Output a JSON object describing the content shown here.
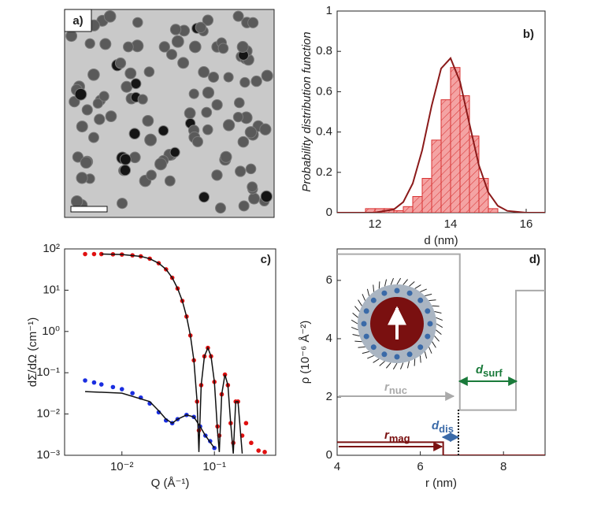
{
  "chart_data": [
    {
      "type": "image",
      "panel_label": "a)"
    },
    {
      "type": "histogram",
      "panel_label": "b)",
      "xlabel": "d (nm)",
      "ylabel": "Probability distribution function",
      "xlim": [
        11,
        16.5
      ],
      "ylim": [
        0,
        1
      ],
      "xticks": [
        12,
        14,
        16
      ],
      "yticks": [
        0,
        0.2,
        0.4,
        0.6,
        0.8,
        1
      ],
      "bins": [
        11.75,
        12,
        12.25,
        12.5,
        12.75,
        13,
        13.25,
        13.5,
        13.75,
        14,
        14.25,
        14.5,
        14.75,
        15,
        15.25
      ],
      "counts": [
        0.02,
        0.02,
        0.02,
        0.01,
        0.03,
        0.08,
        0.17,
        0.36,
        0.56,
        0.72,
        0.58,
        0.38,
        0.17,
        0.02
      ],
      "color": "#f4a3a3",
      "edge_color": "#d83030",
      "fit": {
        "color": "#8b1a1a",
        "x": [
          11,
          11.5,
          12,
          12.5,
          12.75,
          13,
          13.25,
          13.5,
          13.75,
          14,
          14.25,
          14.5,
          14.75,
          15,
          15.25,
          15.5,
          16,
          16.5
        ],
        "y": [
          0,
          0,
          0.0007,
          0.016,
          0.053,
          0.145,
          0.31,
          0.53,
          0.715,
          0.766,
          0.65,
          0.44,
          0.235,
          0.1,
          0.034,
          0.009,
          0,
          0
        ]
      }
    },
    {
      "type": "scatter",
      "panel_label": "c)",
      "xlabel": "Q (Å⁻¹)",
      "ylabel": "dΣ/dΩ (cm⁻¹)",
      "xscale": "log",
      "yscale": "log",
      "xlim": [
        0.0024,
        0.46
      ],
      "ylim": [
        0.001,
        100
      ],
      "xticks": [
        {
          "value": 0.01,
          "label": "10⁻²"
        },
        {
          "value": 0.1,
          "label": "10⁻¹"
        }
      ],
      "yticks": [
        {
          "value": 0.001,
          "label": "10⁻³"
        },
        {
          "value": 0.01,
          "label": "10⁻²"
        },
        {
          "value": 0.1,
          "label": "10⁻¹"
        },
        {
          "value": 1,
          "label": "10⁰"
        },
        {
          "value": 10,
          "label": "10¹"
        },
        {
          "value": 100,
          "label": "10²"
        }
      ],
      "series": [
        {
          "color": "#e01010",
          "x": [
            0.004,
            0.005,
            0.006,
            0.008,
            0.01,
            0.013,
            0.016,
            0.02,
            0.025,
            0.03,
            0.035,
            0.04,
            0.045,
            0.05,
            0.055,
            0.06,
            0.065,
            0.068,
            0.072,
            0.078,
            0.085,
            0.092,
            0.1,
            0.108,
            0.113,
            0.12,
            0.13,
            0.14,
            0.15,
            0.16,
            0.17,
            0.18,
            0.2,
            0.22,
            0.25,
            0.3,
            0.35
          ],
          "values": [
            75,
            75,
            75,
            74,
            73,
            70,
            66,
            58,
            45,
            32,
            20,
            11,
            5.5,
            2.3,
            0.8,
            0.2,
            0.02,
            0.004,
            0.05,
            0.25,
            0.4,
            0.25,
            0.06,
            0.005,
            0.003,
            0.03,
            0.09,
            0.05,
            0.006,
            0.002,
            0.02,
            0.02,
            0.003,
            0.006,
            0.002,
            0.0013,
            0.0012
          ]
        },
        {
          "color": "#1a2ee0",
          "x": [
            0.004,
            0.005,
            0.006,
            0.008,
            0.01,
            0.013,
            0.016,
            0.02,
            0.025,
            0.03,
            0.035,
            0.04,
            0.05,
            0.06,
            0.07,
            0.08,
            0.09,
            0.1
          ],
          "values": [
            0.065,
            0.058,
            0.052,
            0.045,
            0.04,
            0.032,
            0.025,
            0.018,
            0.011,
            0.007,
            0.006,
            0.0075,
            0.0095,
            0.0085,
            0.005,
            0.003,
            0.0022,
            0.0015
          ]
        }
      ],
      "fits": [
        {
          "color": "#111111",
          "x": [
            0.006,
            0.01,
            0.016,
            0.02,
            0.025,
            0.03,
            0.035,
            0.04,
            0.045,
            0.05,
            0.055,
            0.06,
            0.065,
            0.068,
            0.072,
            0.078,
            0.085,
            0.092,
            0.1,
            0.108,
            0.113,
            0.12,
            0.13,
            0.14,
            0.15,
            0.16,
            0.17,
            0.18,
            0.2
          ],
          "y": [
            75,
            73,
            66,
            58,
            45,
            32,
            20,
            11,
            5.5,
            2.3,
            0.8,
            0.2,
            0.02,
            0.0012,
            0.05,
            0.25,
            0.4,
            0.25,
            0.06,
            0.004,
            0.0012,
            0.03,
            0.09,
            0.05,
            0.006,
            0.0011,
            0.02,
            0.02,
            0.0011
          ]
        },
        {
          "color": "#111111",
          "x": [
            0.004,
            0.01,
            0.02,
            0.025,
            0.03,
            0.035,
            0.04,
            0.05,
            0.06,
            0.07,
            0.08,
            0.1
          ],
          "y": [
            0.035,
            0.032,
            0.02,
            0.012,
            0.0075,
            0.006,
            0.0075,
            0.0095,
            0.0085,
            0.005,
            0.003,
            0.0015
          ]
        }
      ]
    },
    {
      "type": "line",
      "panel_label": "d)",
      "xlabel": "r (nm)",
      "ylabel": "ρ (10⁻⁶ Å⁻²)",
      "xlim": [
        4,
        9
      ],
      "ylim": [
        0,
        7.08
      ],
      "xticks": [
        4,
        6,
        8
      ],
      "yticks": [
        0,
        2,
        4,
        6
      ],
      "series": [
        {
          "color": "#aaaaaa",
          "x": [
            4,
            6.95,
            6.95,
            8.3,
            8.3,
            9
          ],
          "values": [
            6.9,
            6.9,
            1.55,
            1.55,
            5.65,
            5.65
          ]
        },
        {
          "color": "#7a1010",
          "x": [
            4,
            6.55,
            6.55,
            9
          ],
          "values": [
            0.45,
            0.45,
            0,
            0
          ]
        }
      ],
      "annotations": [
        {
          "text": "r",
          "sub": "nuc",
          "color": "#aaaaaa"
        },
        {
          "text": "d",
          "sub": "surf",
          "color": "#1a7a3a"
        },
        {
          "text": "d",
          "sub": "dis",
          "color": "#3a6aa8"
        },
        {
          "text": "r",
          "sub": "mag",
          "color": "#7a1010"
        }
      ]
    }
  ]
}
